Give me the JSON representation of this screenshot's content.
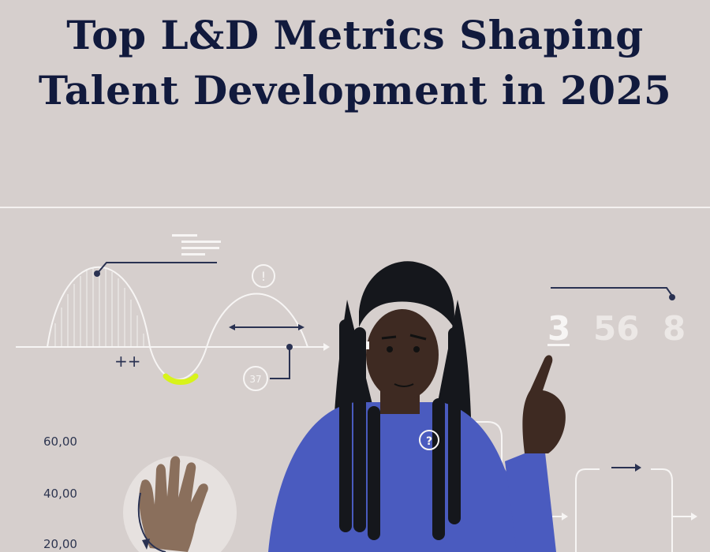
{
  "title": {
    "line1": "Top L&D Metrics Shaping",
    "line2": "Talent Development in 2025"
  },
  "illustration": {
    "wave_plus_label": "++",
    "alert_glyph": "!",
    "badge_number": "37",
    "digits": [
      "3",
      "56",
      "8"
    ],
    "question_glyph": "?",
    "y_axis_labels": [
      "60,00",
      "40,00",
      "20,00"
    ],
    "colors": {
      "background": "#d6cfcd",
      "title": "#111a3d",
      "line_white": "#f7f5f4",
      "accent_lime": "#d8f31a",
      "navy": "#2a3252",
      "shirt": "#4a5bbf",
      "skin": "#3e2a22",
      "hair": "#15171c"
    }
  }
}
